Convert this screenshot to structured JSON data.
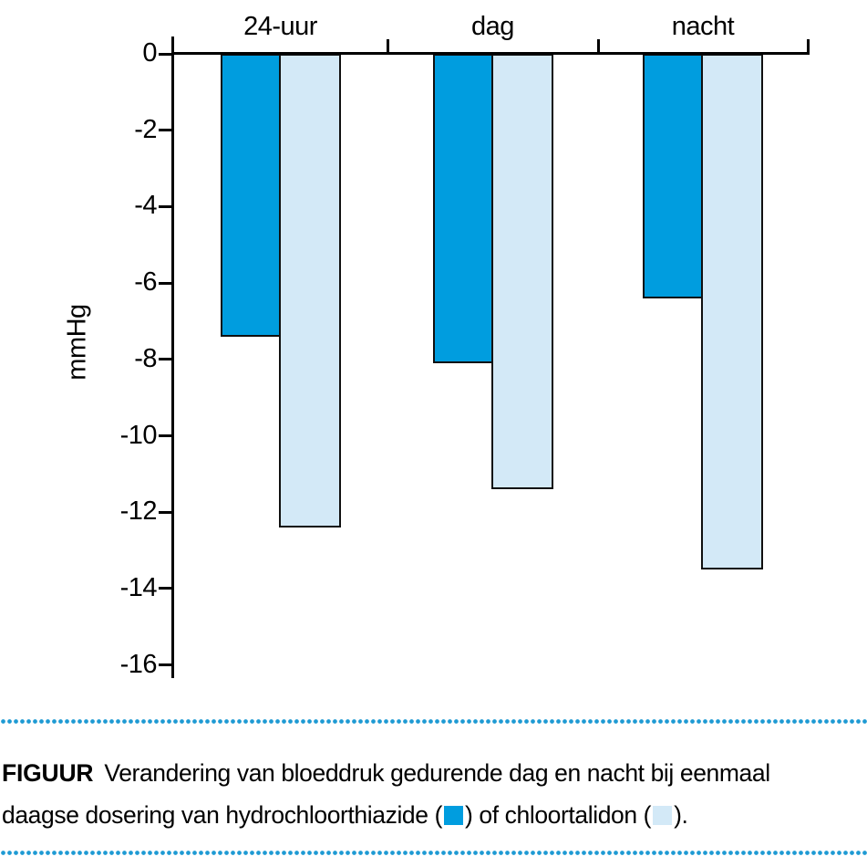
{
  "figure": {
    "caption": {
      "label": "FIGUUR",
      "line1": "Verandering van bloeddruk gedurende dag en nacht bij eenmaal",
      "line2_before_swatch1": "daagse dosering van hydrochloorthiazide (",
      "line2_between_swatches": ") of chloortalidon (",
      "line2_after_swatch2": ")."
    },
    "colors": {
      "series1": "#009ddf",
      "series2": "#d3e9f7",
      "dotted_rule": "#1e9ad3",
      "axis": "#000000"
    }
  },
  "chart_data": {
    "type": "bar",
    "categories": [
      "24-uur",
      "dag",
      "nacht"
    ],
    "series": [
      {
        "name": "hydrochloorthiazide",
        "color": "#009ddf",
        "values": [
          -7.4,
          -8.1,
          -6.4
        ]
      },
      {
        "name": "chloortalidon",
        "color": "#d3e9f7",
        "values": [
          -12.4,
          -11.4,
          -13.5
        ]
      }
    ],
    "title": "",
    "xlabel": "",
    "ylabel": "mmHg",
    "yticks": [
      0,
      -2,
      -4,
      -6,
      -8,
      -10,
      -12,
      -14,
      -16
    ],
    "ylim": [
      -16.5,
      0
    ],
    "grid": false,
    "legend_position": "in-caption"
  }
}
